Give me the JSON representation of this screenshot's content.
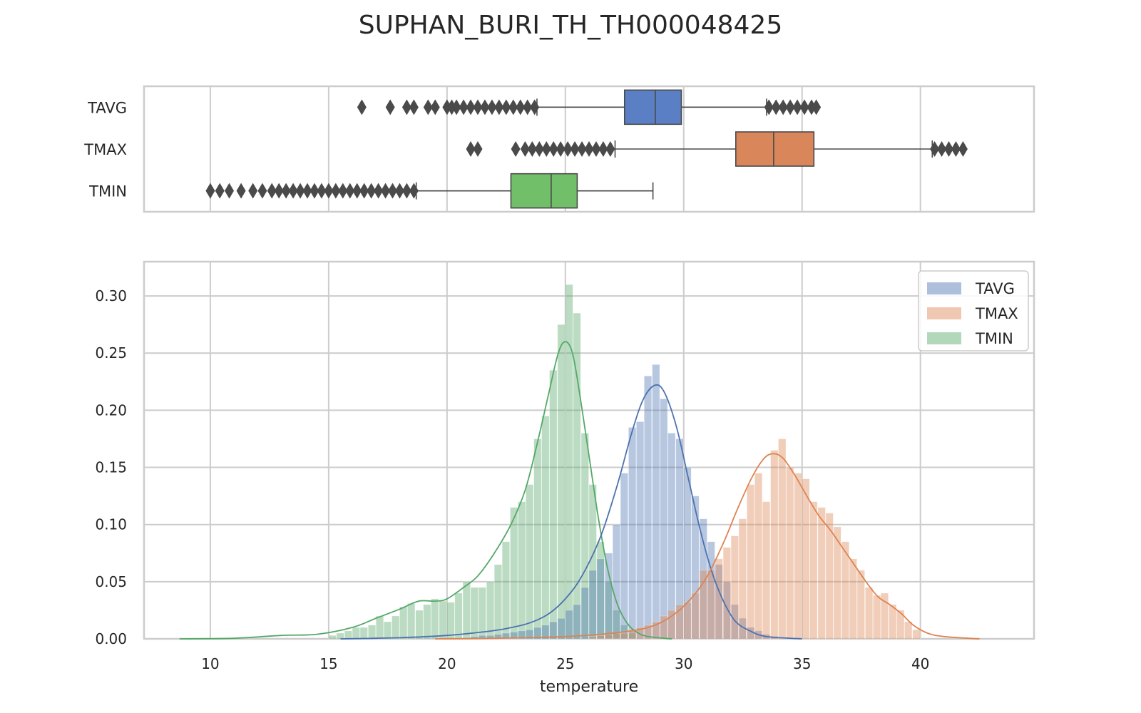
{
  "chart_data": {
    "title": "SUPHAN_BURI_TH_TH000048425",
    "type": "box+histogram",
    "xlabel": "temperature",
    "xlim": [
      7.2,
      44.8
    ],
    "xticks": [
      10,
      15,
      20,
      25,
      30,
      35,
      40
    ],
    "colors": {
      "TAVG": "#4c72b0",
      "TMAX": "#dd8452",
      "TMIN": "#55a868"
    },
    "boxplot": {
      "type": "box",
      "categories": [
        "TAVG",
        "TMAX",
        "TMIN"
      ],
      "boxes": [
        {
          "name": "TAVG",
          "whislo": 23.8,
          "q1": 27.5,
          "med": 28.8,
          "q3": 29.9,
          "whishi": 33.5,
          "color": "#5a7fc4",
          "fliers": [
            16.4,
            17.6,
            18.3,
            18.6,
            19.2,
            19.5,
            20.0,
            20.2,
            20.4,
            20.7,
            21.0,
            21.3,
            21.6,
            21.9,
            22.2,
            22.5,
            22.8,
            23.1,
            23.4,
            23.7,
            33.6,
            33.9,
            34.2,
            34.5,
            34.8,
            35.1,
            35.4,
            35.6
          ]
        },
        {
          "name": "TMAX",
          "whislo": 27.1,
          "q1": 32.2,
          "med": 33.8,
          "q3": 35.5,
          "whishi": 40.5,
          "color": "#d9865b",
          "fliers": [
            21.0,
            21.3,
            22.9,
            23.3,
            23.6,
            23.9,
            24.2,
            24.5,
            24.8,
            25.1,
            25.4,
            25.7,
            26.0,
            26.3,
            26.6,
            26.9,
            40.6,
            40.9,
            41.2,
            41.5,
            41.8
          ]
        },
        {
          "name": "TMIN",
          "whislo": 18.7,
          "q1": 22.7,
          "med": 24.4,
          "q3": 25.5,
          "whishi": 28.7,
          "color": "#72bf6a",
          "fliers": [
            10.0,
            10.4,
            10.8,
            11.3,
            11.8,
            12.2,
            12.6,
            12.9,
            13.2,
            13.5,
            13.8,
            14.1,
            14.4,
            14.7,
            15.0,
            15.3,
            15.6,
            15.9,
            16.2,
            16.5,
            16.8,
            17.1,
            17.4,
            17.7,
            18.0,
            18.3,
            18.6
          ]
        }
      ]
    },
    "histogram": {
      "type": "bar",
      "ylim": [
        0,
        0.33
      ],
      "yticks": [
        0.0,
        0.05,
        0.1,
        0.15,
        0.2,
        0.25,
        0.3
      ],
      "ytick_labels": [
        "0.00",
        "0.05",
        "0.10",
        "0.15",
        "0.20",
        "0.25",
        "0.30"
      ],
      "legend_position": "top-right",
      "bin_width": 0.333,
      "series": [
        {
          "name": "TMIN",
          "color": "#55a868",
          "bins": [
            [
              15.0,
              0.003
            ],
            [
              15.33,
              0.005
            ],
            [
              15.67,
              0.007
            ],
            [
              16.0,
              0.01
            ],
            [
              16.33,
              0.01
            ],
            [
              16.67,
              0.012
            ],
            [
              17.0,
              0.02
            ],
            [
              17.33,
              0.015
            ],
            [
              17.67,
              0.02
            ],
            [
              18.0,
              0.028
            ],
            [
              18.33,
              0.031
            ],
            [
              18.67,
              0.025
            ],
            [
              19.0,
              0.03
            ],
            [
              19.33,
              0.035
            ],
            [
              19.67,
              0.033
            ],
            [
              20.0,
              0.032
            ],
            [
              20.33,
              0.04
            ],
            [
              20.67,
              0.05
            ],
            [
              21.0,
              0.045
            ],
            [
              21.33,
              0.045
            ],
            [
              21.67,
              0.05
            ],
            [
              22.0,
              0.065
            ],
            [
              22.33,
              0.085
            ],
            [
              22.67,
              0.115
            ],
            [
              23.0,
              0.12
            ],
            [
              23.33,
              0.135
            ],
            [
              23.67,
              0.175
            ],
            [
              24.0,
              0.195
            ],
            [
              24.33,
              0.235
            ],
            [
              24.67,
              0.275
            ],
            [
              25.0,
              0.31
            ],
            [
              25.33,
              0.285
            ],
            [
              25.67,
              0.18
            ],
            [
              26.0,
              0.135
            ],
            [
              26.33,
              0.085
            ],
            [
              26.67,
              0.05
            ],
            [
              27.0,
              0.025
            ],
            [
              27.33,
              0.012
            ],
            [
              27.67,
              0.005
            ]
          ]
        },
        {
          "name": "TAVG",
          "color": "#4c72b0",
          "bins": [
            [
              21.0,
              0.002
            ],
            [
              21.33,
              0.003
            ],
            [
              21.67,
              0.003
            ],
            [
              22.0,
              0.004
            ],
            [
              22.33,
              0.005
            ],
            [
              22.67,
              0.006
            ],
            [
              23.0,
              0.007
            ],
            [
              23.33,
              0.008
            ],
            [
              23.67,
              0.01
            ],
            [
              24.0,
              0.012
            ],
            [
              24.33,
              0.015
            ],
            [
              24.67,
              0.018
            ],
            [
              25.0,
              0.025
            ],
            [
              25.33,
              0.03
            ],
            [
              25.67,
              0.045
            ],
            [
              26.0,
              0.06
            ],
            [
              26.33,
              0.07
            ],
            [
              26.67,
              0.075
            ],
            [
              27.0,
              0.1
            ],
            [
              27.33,
              0.145
            ],
            [
              27.67,
              0.185
            ],
            [
              28.0,
              0.19
            ],
            [
              28.33,
              0.23
            ],
            [
              28.67,
              0.24
            ],
            [
              29.0,
              0.21
            ],
            [
              29.33,
              0.18
            ],
            [
              29.67,
              0.175
            ],
            [
              30.0,
              0.15
            ],
            [
              30.33,
              0.125
            ],
            [
              30.67,
              0.105
            ],
            [
              31.0,
              0.085
            ],
            [
              31.33,
              0.065
            ],
            [
              31.67,
              0.05
            ],
            [
              32.0,
              0.03
            ],
            [
              32.33,
              0.018
            ],
            [
              32.67,
              0.01
            ],
            [
              33.0,
              0.007
            ],
            [
              33.33,
              0.004
            ],
            [
              33.67,
              0.002
            ]
          ]
        },
        {
          "name": "TMAX",
          "color": "#dd8452",
          "bins": [
            [
              26.0,
              0.002
            ],
            [
              26.33,
              0.003
            ],
            [
              26.67,
              0.004
            ],
            [
              27.0,
              0.005
            ],
            [
              27.33,
              0.005
            ],
            [
              27.67,
              0.007
            ],
            [
              28.0,
              0.01
            ],
            [
              28.33,
              0.012
            ],
            [
              28.67,
              0.015
            ],
            [
              29.0,
              0.02
            ],
            [
              29.33,
              0.025
            ],
            [
              29.67,
              0.03
            ],
            [
              30.0,
              0.032
            ],
            [
              30.33,
              0.04
            ],
            [
              30.67,
              0.06
            ],
            [
              31.0,
              0.06
            ],
            [
              31.33,
              0.07
            ],
            [
              31.67,
              0.08
            ],
            [
              32.0,
              0.09
            ],
            [
              32.33,
              0.105
            ],
            [
              32.67,
              0.135
            ],
            [
              33.0,
              0.145
            ],
            [
              33.33,
              0.12
            ],
            [
              33.67,
              0.165
            ],
            [
              34.0,
              0.175
            ],
            [
              34.33,
              0.15
            ],
            [
              34.67,
              0.145
            ],
            [
              35.0,
              0.14
            ],
            [
              35.33,
              0.12
            ],
            [
              35.67,
              0.115
            ],
            [
              36.0,
              0.11
            ],
            [
              36.33,
              0.098
            ],
            [
              36.67,
              0.085
            ],
            [
              37.0,
              0.07
            ],
            [
              37.33,
              0.06
            ],
            [
              37.67,
              0.045
            ],
            [
              38.0,
              0.038
            ],
            [
              38.33,
              0.04
            ],
            [
              38.67,
              0.03
            ],
            [
              39.0,
              0.025
            ],
            [
              39.33,
              0.015
            ],
            [
              39.67,
              0.008
            ]
          ]
        }
      ],
      "kde": [
        {
          "name": "TMIN",
          "color": "#55a868",
          "points": [
            [
              8.7,
              0.0
            ],
            [
              11.0,
              0.0005
            ],
            [
              13.0,
              0.003
            ],
            [
              14.5,
              0.004
            ],
            [
              16.0,
              0.01
            ],
            [
              17.0,
              0.018
            ],
            [
              18.0,
              0.026
            ],
            [
              18.8,
              0.033
            ],
            [
              19.5,
              0.033
            ],
            [
              20.0,
              0.035
            ],
            [
              20.7,
              0.045
            ],
            [
              21.3,
              0.055
            ],
            [
              22.0,
              0.075
            ],
            [
              22.7,
              0.1
            ],
            [
              23.3,
              0.13
            ],
            [
              23.8,
              0.17
            ],
            [
              24.3,
              0.215
            ],
            [
              24.7,
              0.25
            ],
            [
              25.0,
              0.26
            ],
            [
              25.3,
              0.25
            ],
            [
              25.6,
              0.215
            ],
            [
              26.0,
              0.16
            ],
            [
              26.4,
              0.105
            ],
            [
              26.8,
              0.06
            ],
            [
              27.2,
              0.03
            ],
            [
              27.6,
              0.014
            ],
            [
              28.0,
              0.006
            ],
            [
              28.5,
              0.002
            ],
            [
              29.5,
              0.0
            ]
          ]
        },
        {
          "name": "TAVG",
          "color": "#4c72b0",
          "points": [
            [
              15.5,
              0.0
            ],
            [
              18.0,
              0.001
            ],
            [
              20.0,
              0.003
            ],
            [
              21.5,
              0.006
            ],
            [
              22.5,
              0.009
            ],
            [
              23.5,
              0.014
            ],
            [
              24.3,
              0.022
            ],
            [
              25.0,
              0.035
            ],
            [
              25.7,
              0.055
            ],
            [
              26.5,
              0.09
            ],
            [
              27.2,
              0.135
            ],
            [
              27.8,
              0.18
            ],
            [
              28.3,
              0.21
            ],
            [
              28.8,
              0.222
            ],
            [
              29.2,
              0.215
            ],
            [
              29.7,
              0.185
            ],
            [
              30.2,
              0.14
            ],
            [
              30.7,
              0.095
            ],
            [
              31.2,
              0.058
            ],
            [
              31.7,
              0.032
            ],
            [
              32.2,
              0.015
            ],
            [
              32.8,
              0.007
            ],
            [
              33.5,
              0.002
            ],
            [
              35.0,
              0.0
            ]
          ]
        },
        {
          "name": "TMAX",
          "color": "#dd8452",
          "points": [
            [
              19.5,
              0.0
            ],
            [
              22.0,
              0.0005
            ],
            [
              25.0,
              0.002
            ],
            [
              27.0,
              0.005
            ],
            [
              28.5,
              0.01
            ],
            [
              29.5,
              0.02
            ],
            [
              30.3,
              0.035
            ],
            [
              31.0,
              0.055
            ],
            [
              31.7,
              0.085
            ],
            [
              32.3,
              0.115
            ],
            [
              32.9,
              0.142
            ],
            [
              33.4,
              0.158
            ],
            [
              33.8,
              0.162
            ],
            [
              34.2,
              0.158
            ],
            [
              34.7,
              0.143
            ],
            [
              35.2,
              0.125
            ],
            [
              35.7,
              0.108
            ],
            [
              36.2,
              0.095
            ],
            [
              36.7,
              0.08
            ],
            [
              37.2,
              0.065
            ],
            [
              37.7,
              0.05
            ],
            [
              38.2,
              0.037
            ],
            [
              38.7,
              0.03
            ],
            [
              39.2,
              0.022
            ],
            [
              39.7,
              0.012
            ],
            [
              40.3,
              0.005
            ],
            [
              41.0,
              0.002
            ],
            [
              42.5,
              0.0
            ]
          ]
        }
      ]
    }
  }
}
